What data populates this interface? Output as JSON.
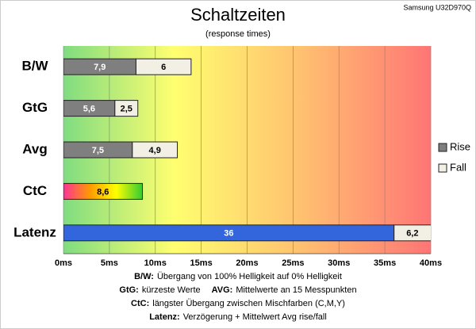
{
  "chart_data": {
    "type": "stacked-barh",
    "title": "Schaltzeiten",
    "subtitle": "(response times)",
    "corner_note": "Samsung U32D970Q",
    "categories": [
      "B/W",
      "GtG",
      "Avg",
      "CtC",
      "Latenz"
    ],
    "series": [
      {
        "name": "Rise",
        "color": "#7f7f7f",
        "point_colors": [
          "#7f7f7f",
          "#7f7f7f",
          "#7f7f7f",
          [
            "#ff3399",
            "#ff9900",
            "#ffff00",
            "#33cc33"
          ],
          "#3366dd"
        ],
        "values": [
          7.9,
          5.6,
          7.5,
          8.6,
          36
        ],
        "value_labels": [
          "7,9",
          "5,6",
          "7,5",
          "8,6",
          "36"
        ]
      },
      {
        "name": "Fall",
        "color": "#f2efe4",
        "values": [
          6,
          2.5,
          4.9,
          null,
          6.2
        ],
        "value_labels": [
          "6",
          "2,5",
          "4,9",
          null,
          "6,2"
        ]
      }
    ],
    "xlim": [
      0,
      40
    ],
    "xticks": [
      {
        "value": 0,
        "label": "0ms"
      },
      {
        "value": 5,
        "label": "5ms"
      },
      {
        "value": 10,
        "label": "10ms"
      },
      {
        "value": 15,
        "label": "15ms"
      },
      {
        "value": 20,
        "label": "20ms"
      },
      {
        "value": 25,
        "label": "25ms"
      },
      {
        "value": 30,
        "label": "30ms"
      },
      {
        "value": 35,
        "label": "35ms"
      },
      {
        "value": 40,
        "label": "40ms"
      }
    ],
    "grid": true,
    "legend": "right",
    "notes": [
      [
        {
          "term": "B/W:",
          "text": "Übergang von 100% Helligkeit auf 0% Helligkeit"
        }
      ],
      [
        {
          "term": "GtG:",
          "text": "kürzeste Werte"
        },
        {
          "term": "AVG:",
          "text": "Mittelwerte an 15 Messpunkten"
        }
      ],
      [
        {
          "term": "CtC:",
          "text": "längster Übergang zwischen Mischfarben (C,M,Y)"
        }
      ],
      [
        {
          "term": "Latenz:",
          "text": "Verzögerung + Mittelwert Avg rise/fall"
        }
      ]
    ]
  }
}
